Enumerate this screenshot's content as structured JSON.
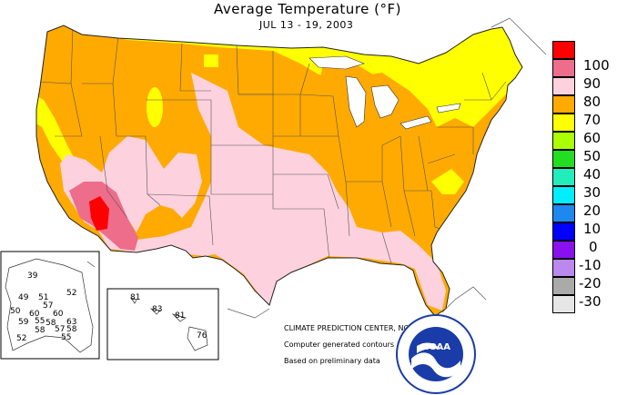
{
  "title": "Average Temperature (°F)",
  "subtitle": "JUL 13 - 19, 2003",
  "legend": [
    {
      "label": "100",
      "color": "#ff0000"
    },
    {
      "label": "90",
      "color": "#ee6d8a"
    },
    {
      "label": "80",
      "color": "#fdd2de"
    },
    {
      "label": "70",
      "color": "#ffaa00"
    },
    {
      "label": "60",
      "color": "#ffff00"
    },
    {
      "label": "50",
      "color": "#aaff00"
    },
    {
      "label": "40",
      "color": "#22dd22"
    },
    {
      "label": "30",
      "color": "#22eebb"
    },
    {
      "label": "20",
      "color": "#00eeff"
    },
    {
      "label": "10",
      "color": "#1e88ee"
    },
    {
      "label": "0",
      "color": "#0000ff"
    },
    {
      "label": "-10",
      "color": "#8811ee"
    },
    {
      "label": "-20",
      "color": "#bb88ee"
    },
    {
      "label": "-30",
      "color": "#aaaaaa"
    },
    {
      "label": "",
      "color": "#e6e6e6"
    }
  ],
  "credits": {
    "center": "CLIMATE PREDICTION CENTER, NOAA",
    "line1": "Computer generated contours",
    "line2": "Based on preliminary data"
  },
  "alaska_values": [
    "39",
    "49",
    "51",
    "52",
    "57",
    "50",
    "60",
    "60",
    "59",
    "55",
    "58",
    "63",
    "57",
    "58",
    "58",
    "55",
    "52",
    "58"
  ],
  "hawaii_values": [
    "81",
    "83",
    "81",
    "76"
  ],
  "logo_text": "NOAA"
}
